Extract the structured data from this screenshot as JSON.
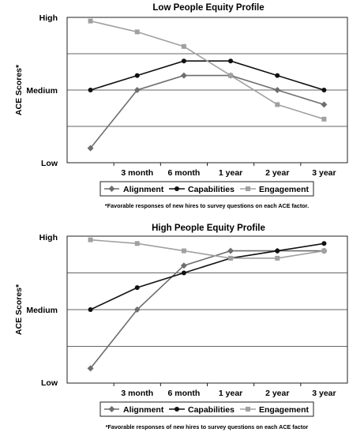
{
  "chart_data": [
    {
      "type": "line",
      "title": "Low People Equity Profile",
      "ylabel": "ACE Scores*",
      "xlabel": "",
      "y_tick_labels": [
        "High",
        "Medium",
        "Low"
      ],
      "x": [
        "",
        "3 month",
        "6 month",
        "1 year",
        "2 year",
        "3 year"
      ],
      "ylim": [
        0,
        4
      ],
      "grid": "horizontal",
      "legend_position": "bottom",
      "series": [
        {
          "name": "Alignment",
          "marker": "diamond",
          "color": "#6e6e6e",
          "values": [
            0.4,
            2.0,
            2.4,
            2.4,
            2.0,
            1.6
          ]
        },
        {
          "name": "Capabilities",
          "marker": "circle",
          "color": "#111111",
          "values": [
            2.0,
            2.4,
            2.8,
            2.8,
            2.4,
            2.0
          ]
        },
        {
          "name": "Engagement",
          "marker": "square",
          "color": "#a0a0a0",
          "values": [
            3.9,
            3.6,
            3.2,
            2.4,
            1.6,
            1.2
          ]
        }
      ],
      "footnote": "*Favorable responses of new hires to survey questions on each ACE factor."
    },
    {
      "type": "line",
      "title": "High People Equity Profile",
      "ylabel": "ACE Scores*",
      "xlabel": "",
      "y_tick_labels": [
        "High",
        "Medium",
        "Low"
      ],
      "x": [
        "",
        "3 month",
        "6 month",
        "1 year",
        "2 year",
        "3 year"
      ],
      "ylim": [
        0,
        4
      ],
      "grid": "horizontal",
      "legend_position": "bottom",
      "series": [
        {
          "name": "Alignment",
          "marker": "diamond",
          "color": "#6e6e6e",
          "values": [
            0.4,
            2.0,
            3.2,
            3.6,
            3.6,
            3.6
          ]
        },
        {
          "name": "Capabilities",
          "marker": "circle",
          "color": "#111111",
          "values": [
            2.0,
            2.6,
            3.0,
            3.4,
            3.6,
            3.8
          ]
        },
        {
          "name": "Engagement",
          "marker": "square",
          "color": "#a0a0a0",
          "values": [
            3.9,
            3.8,
            3.6,
            3.4,
            3.4,
            3.6
          ]
        }
      ],
      "footnote": "*Favorable responses of new hires to survey questions on each ACE factor"
    }
  ]
}
